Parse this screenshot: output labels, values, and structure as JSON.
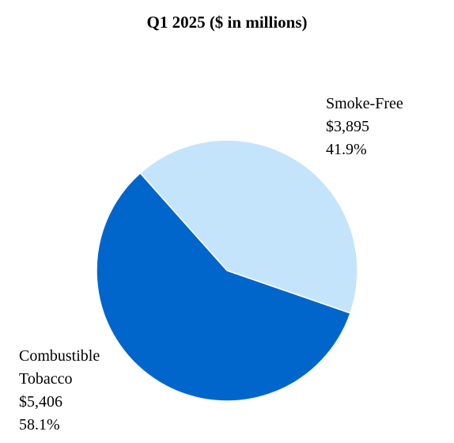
{
  "chart_data": {
    "type": "pie",
    "title": "Q1 2025 ($ in millions)",
    "slices": [
      {
        "label": "Smoke-Free",
        "label_lines": [
          "Smoke-Free"
        ],
        "value": 3895,
        "value_label": "$3,895",
        "percent": 41.9,
        "percent_label": "41.9%",
        "color": "#c4e4fb"
      },
      {
        "label": "Combustible Tobacco",
        "label_lines": [
          "Combustible",
          "Tobacco"
        ],
        "value": 5406,
        "value_label": "$5,406",
        "percent": 58.1,
        "percent_label": "58.1%",
        "color": "#0066cc"
      }
    ]
  }
}
